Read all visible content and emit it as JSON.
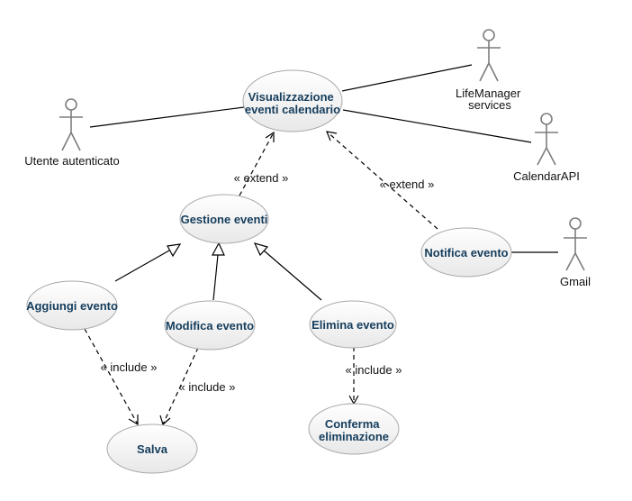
{
  "use_cases": {
    "visualizzazione": [
      "Visualizzazione",
      "eventi calendario"
    ],
    "gestione": [
      "Gestione eventi"
    ],
    "notifica": [
      "Notifica evento"
    ],
    "aggiungi": [
      "Aggiungi evento"
    ],
    "modifica": [
      "Modifica evento"
    ],
    "elimina": [
      "Elimina evento"
    ],
    "salva": [
      "Salva"
    ],
    "conferma": [
      "Conferma",
      "eliminazione"
    ]
  },
  "actors": {
    "utente": [
      "Utente autenticato"
    ],
    "lifemanager": [
      "LifeManager",
      "services"
    ],
    "calendarapi": [
      "CalendarAPI"
    ],
    "gmail": [
      "Gmail"
    ]
  },
  "relations": {
    "extend_gestione": "« extend »",
    "extend_notifica": "« extend »",
    "include_aggiungi": "« include »",
    "include_modifica": "« include »",
    "include_elimina": "« include »"
  }
}
